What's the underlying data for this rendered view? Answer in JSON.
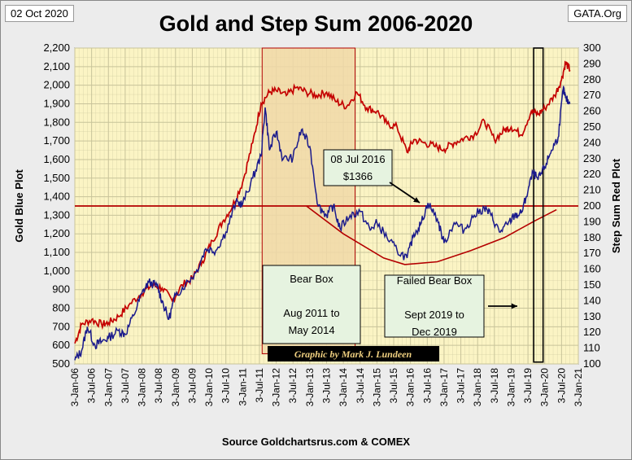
{
  "header": {
    "date": "02 Oct 2020",
    "site": "GATA.Org",
    "title": "Gold and Step Sum 2006-2020",
    "source": "Source Goldchartsrus.com & COMEX",
    "credit": "Graphic by Mark J. Lundeen"
  },
  "colors": {
    "plot_bg": "#fbf4c4",
    "grid": "#c8c39a",
    "bear_box": "#f0d8a8",
    "gold_line": "#1a1a8c",
    "step_line": "#c40000",
    "ref_line": "#b40000",
    "curve": "#b40000",
    "credit_bg": "#000000",
    "credit_fg": "#f0d080"
  },
  "chart_data": {
    "type": "line",
    "ylabel_left": "Gold   Blue Plot",
    "ylabel_right": "Step Sum   Red Plot",
    "y_left_range": [
      500,
      2200
    ],
    "y_right_range": [
      100,
      300
    ],
    "y_left_ticks": [
      "500",
      "600",
      "700",
      "800",
      "900",
      "1,000",
      "1,100",
      "1,200",
      "1,300",
      "1,400",
      "1,500",
      "1,600",
      "1,700",
      "1,800",
      "1,900",
      "2,000",
      "2,100",
      "2,200"
    ],
    "y_right_ticks": [
      "100",
      "110",
      "120",
      "130",
      "140",
      "150",
      "160",
      "170",
      "180",
      "190",
      "200",
      "210",
      "220",
      "230",
      "240",
      "250",
      "260",
      "270",
      "280",
      "290",
      "300"
    ],
    "x_ticks": [
      "3-Jan-06",
      "3-Jul-06",
      "3-Jan-07",
      "3-Jul-07",
      "3-Jan-08",
      "3-Jul-08",
      "3-Jan-09",
      "3-Jul-09",
      "3-Jan-10",
      "3-Jul-10",
      "3-Jan-11",
      "3-Jul-11",
      "3-Jan-12",
      "3-Jul-12",
      "3-Jan-13",
      "3-Jul-13",
      "3-Jan-14",
      "3-Jul-14",
      "3-Jan-15",
      "3-Jul-15",
      "3-Jan-16",
      "3-Jul-16",
      "3-Jan-17",
      "3-Jul-17",
      "3-Jan-18",
      "3-Jul-18",
      "3-Jan-19",
      "3-Jul-19",
      "3-Jan-20",
      "3-Jul-20",
      "3-Jan-21"
    ],
    "x_range": [
      2006.0,
      2021.0
    ],
    "series": [
      {
        "axis": "left",
        "x": [
          2006.0,
          2006.2,
          2006.37,
          2006.6,
          2006.8,
          2007.0,
          2007.3,
          2007.5,
          2007.75,
          2008.0,
          2008.2,
          2008.45,
          2008.6,
          2008.8,
          2009.0,
          2009.3,
          2009.6,
          2009.9,
          2010.2,
          2010.5,
          2010.8,
          2011.0,
          2011.3,
          2011.55,
          2011.67,
          2011.8,
          2012.0,
          2012.2,
          2012.5,
          2012.75,
          2013.0,
          2013.25,
          2013.5,
          2013.7,
          2013.9,
          2014.2,
          2014.5,
          2014.8,
          2015.0,
          2015.3,
          2015.6,
          2015.9,
          2016.1,
          2016.3,
          2016.52,
          2016.8,
          2017.0,
          2017.3,
          2017.6,
          2017.9,
          2018.2,
          2018.4,
          2018.65,
          2018.9,
          2019.1,
          2019.3,
          2019.45,
          2019.65,
          2019.8,
          2020.0,
          2020.2,
          2020.4,
          2020.55,
          2020.62,
          2020.75
        ],
        "values": [
          520,
          570,
          700,
          600,
          620,
          640,
          680,
          660,
          760,
          880,
          940,
          920,
          840,
          740,
          870,
          930,
          990,
          1120,
          1110,
          1210,
          1370,
          1360,
          1500,
          1620,
          1880,
          1650,
          1750,
          1600,
          1610,
          1760,
          1670,
          1350,
          1300,
          1350,
          1230,
          1300,
          1320,
          1220,
          1260,
          1180,
          1110,
          1070,
          1200,
          1250,
          1366,
          1280,
          1150,
          1260,
          1220,
          1300,
          1340,
          1300,
          1210,
          1250,
          1300,
          1310,
          1400,
          1530,
          1490,
          1560,
          1650,
          1720,
          1980,
          1930,
          1900
        ]
      },
      {
        "axis": "right",
        "x": [
          2006.0,
          2006.2,
          2006.5,
          2006.8,
          2007.0,
          2007.3,
          2007.6,
          2008.0,
          2008.3,
          2008.6,
          2008.9,
          2009.2,
          2009.5,
          2009.8,
          2010.1,
          2010.4,
          2010.7,
          2011.0,
          2011.3,
          2011.55,
          2011.8,
          2012.0,
          2012.3,
          2012.6,
          2012.9,
          2013.2,
          2013.5,
          2013.8,
          2014.1,
          2014.4,
          2014.7,
          2015.0,
          2015.3,
          2015.6,
          2015.9,
          2016.1,
          2016.4,
          2016.7,
          2017.0,
          2017.3,
          2017.6,
          2017.9,
          2018.2,
          2018.5,
          2018.8,
          2019.0,
          2019.3,
          2019.6,
          2019.8,
          2020.0,
          2020.3,
          2020.5,
          2020.62,
          2020.75
        ],
        "values": [
          113,
          125,
          128,
          125,
          126,
          130,
          137,
          145,
          150,
          148,
          140,
          150,
          154,
          165,
          178,
          190,
          200,
          215,
          240,
          265,
          272,
          273,
          270,
          275,
          272,
          270,
          272,
          266,
          263,
          272,
          262,
          260,
          252,
          250,
          234,
          242,
          240,
          238,
          236,
          240,
          243,
          245,
          254,
          242,
          248,
          250,
          245,
          260,
          258,
          262,
          270,
          280,
          291,
          286
        ]
      }
    ],
    "reference_line_right": 200,
    "bear_box": {
      "x_start": 2011.58,
      "x_end": 2014.35,
      "y_left_min": 555,
      "y_left_max": 2200
    },
    "failed_bear_box": {
      "x_start": 2019.67,
      "x_end": 2019.95,
      "y_left_min": 510,
      "y_left_max": 2200
    },
    "curve_left": {
      "x": [
        2012.9,
        2014.0,
        2015.2,
        2015.83,
        2016.8,
        2017.8,
        2018.8,
        2019.7,
        2020.35
      ],
      "values": [
        1350,
        1200,
        1070,
        1035,
        1050,
        1110,
        1180,
        1270,
        1330
      ]
    },
    "annotations": [
      {
        "lines": [
          "Bear Box",
          "",
          "Aug 2011 to",
          "May 2014"
        ]
      },
      {
        "lines": [
          "Failed Bear Box",
          "",
          "Sept 2019 to",
          "Dec 2019"
        ]
      },
      {
        "lines": [
          "08 Jul 2016",
          "$1366"
        ]
      }
    ]
  }
}
